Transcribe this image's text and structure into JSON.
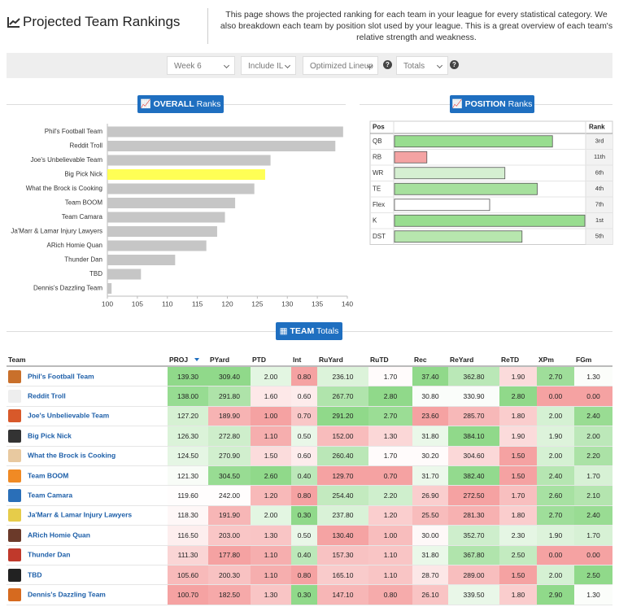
{
  "header": {
    "title": "Projected Team Rankings",
    "description": "This page shows the projected ranking for each team in your league for every statistical category. We also breakdown each team by position slot used by your league. This is a great overview of each team's relative strength and weakness."
  },
  "controls": {
    "week": "Week 6",
    "include": "Include IL",
    "lineup": "Optimized Lineup",
    "mode": "Totals",
    "help": "?"
  },
  "chart_data": [
    {
      "type": "bar",
      "orientation": "horizontal",
      "button": {
        "bold": "OVERALL",
        "text": "Ranks"
      },
      "categories": [
        "Phil's Football Team",
        "Reddit Troll",
        "Joe's Unbelievable Team",
        "Big Pick Nick",
        "What the Brock is Cooking",
        "Team BOOM",
        "Team Camara",
        "Ja'Marr & Lamar Injury Lawyers",
        "ARich Homie Quan",
        "Thunder Dan",
        "TBD",
        "Dennis's Dazzling Team"
      ],
      "values": [
        139.3,
        138.0,
        127.2,
        126.3,
        124.5,
        121.3,
        119.6,
        118.3,
        116.5,
        111.3,
        105.6,
        100.7
      ],
      "colors": [
        "#c6c6c6",
        "#c6c6c6",
        "#c6c6c6",
        "#ffff55",
        "#c6c6c6",
        "#c6c6c6",
        "#c6c6c6",
        "#c6c6c6",
        "#c6c6c6",
        "#c6c6c6",
        "#c6c6c6",
        "#c6c6c6"
      ],
      "xlim": [
        100,
        140
      ],
      "xticks": [
        100,
        105,
        110,
        115,
        120,
        125,
        130,
        135,
        140
      ]
    },
    {
      "type": "bar-table",
      "button": {
        "bold": "POSITION",
        "text": "Ranks"
      },
      "category_header": "Pos",
      "label_header": "Rank",
      "categories": [
        "QB",
        "RB",
        "WR",
        "TE",
        "Flex",
        "K",
        "DST"
      ],
      "value_labels": [
        "3rd",
        "11th",
        "6th",
        "4th",
        "7th",
        "1st",
        "5th"
      ],
      "values": [
        83,
        17,
        58,
        75,
        50,
        100,
        67
      ],
      "colors": [
        "#98dd8f",
        "#f4a3a3",
        "#d5efd1",
        "#a6e09d",
        "#ffffff",
        "#98dd8f",
        "#b7e6ae"
      ],
      "xlim": [
        0,
        100
      ]
    }
  ],
  "team_table": {
    "button": {
      "bold": "TEAM",
      "text": "Totals"
    },
    "columns": [
      "Team",
      "PROJ",
      "PYard",
      "PTD",
      "Int",
      "RuYard",
      "RuTD",
      "Rec",
      "ReYard",
      "ReTD",
      "XPm",
      "FGm"
    ],
    "lower_is_better": [
      false,
      false,
      false,
      false,
      true,
      false,
      false,
      false,
      false,
      false,
      false,
      false
    ],
    "scale_colors": [
      "#f5a2a2",
      "#ffffff",
      "#90d98a"
    ],
    "rows": [
      [
        "Phil's Football Team",
        "139.30",
        "309.40",
        "2.00",
        "0.80",
        "236.10",
        "1.70",
        "37.40",
        "362.80",
        "1.90",
        "2.70",
        "1.30"
      ],
      [
        "Reddit Troll",
        "138.00",
        "291.80",
        "1.60",
        "0.60",
        "267.70",
        "2.80",
        "30.80",
        "330.90",
        "2.80",
        "0.00",
        "0.00"
      ],
      [
        "Joe's Unbelievable Team",
        "127.20",
        "189.90",
        "1.00",
        "0.70",
        "291.20",
        "2.70",
        "23.60",
        "285.70",
        "1.80",
        "2.00",
        "2.40"
      ],
      [
        "Big Pick Nick",
        "126.30",
        "272.80",
        "1.10",
        "0.50",
        "152.00",
        "1.30",
        "31.80",
        "384.10",
        "1.90",
        "1.90",
        "2.00"
      ],
      [
        "What the Brock is Cooking",
        "124.50",
        "270.90",
        "1.50",
        "0.60",
        "260.40",
        "1.70",
        "30.20",
        "304.60",
        "1.50",
        "2.00",
        "2.20"
      ],
      [
        "Team BOOM",
        "121.30",
        "304.50",
        "2.60",
        "0.40",
        "129.70",
        "0.70",
        "31.70",
        "382.40",
        "1.50",
        "2.40",
        "1.70"
      ],
      [
        "Team Camara",
        "119.60",
        "242.00",
        "1.20",
        "0.80",
        "254.40",
        "2.20",
        "26.90",
        "272.50",
        "1.70",
        "2.60",
        "2.10"
      ],
      [
        "Ja'Marr & Lamar Injury Lawyers",
        "118.30",
        "191.90",
        "2.00",
        "0.30",
        "237.80",
        "1.20",
        "25.50",
        "281.30",
        "1.80",
        "2.70",
        "2.40"
      ],
      [
        "ARich Homie Quan",
        "116.50",
        "203.00",
        "1.30",
        "0.50",
        "130.40",
        "1.00",
        "30.00",
        "352.70",
        "2.30",
        "1.90",
        "1.70"
      ],
      [
        "Thunder Dan",
        "111.30",
        "177.80",
        "1.10",
        "0.40",
        "157.30",
        "1.10",
        "31.80",
        "367.80",
        "2.50",
        "0.00",
        "0.00"
      ],
      [
        "TBD",
        "105.60",
        "200.30",
        "1.10",
        "0.80",
        "165.10",
        "1.10",
        "28.70",
        "289.00",
        "1.50",
        "2.00",
        "2.50"
      ],
      [
        "Dennis's Dazzling Team",
        "100.70",
        "182.50",
        "1.30",
        "0.30",
        "147.10",
        "0.80",
        "26.10",
        "339.50",
        "1.80",
        "2.90",
        "1.30"
      ]
    ]
  }
}
